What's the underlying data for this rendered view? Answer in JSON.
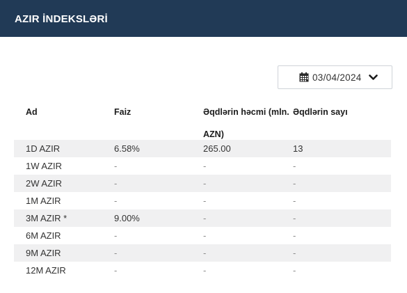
{
  "header": {
    "title": "AZIR İNDEKSLƏRİ"
  },
  "date_picker": {
    "value": "03/04/2024"
  },
  "table": {
    "columns": [
      "Ad",
      "Faiz",
      "Əqdlərin həcmi (mln. AZN)",
      "Əqdlərin sayı"
    ],
    "rows": [
      [
        "1D AZIR",
        "6.58%",
        "265.00",
        "13"
      ],
      [
        "1W AZIR",
        "-",
        "-",
        "-"
      ],
      [
        "2W AZIR",
        "-",
        "-",
        "-"
      ],
      [
        "1M AZIR",
        "-",
        "-",
        "-"
      ],
      [
        "3M AZIR *",
        "9.00%",
        "-",
        "-"
      ],
      [
        "6M AZIR",
        "-",
        "-",
        "-"
      ],
      [
        "9M AZIR",
        "-",
        "-",
        "-"
      ],
      [
        "12M AZIR",
        "-",
        "-",
        "-"
      ]
    ]
  },
  "colors": {
    "header_bg": "#213a56",
    "row_alt": "#f0f0f1"
  },
  "icons": {
    "date": "calendar-icon",
    "dropdown": "chevron-down-icon"
  }
}
